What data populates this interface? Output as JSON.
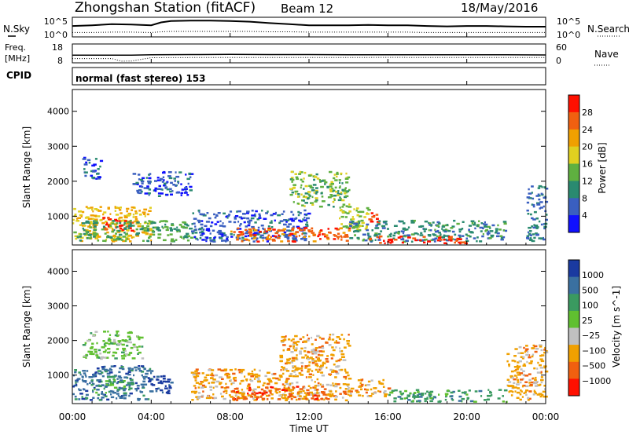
{
  "header": {
    "station": "Zhongshan Station (fitACF)",
    "beam": "Beam 12",
    "date": "18/May/2016"
  },
  "chart_data": [
    {
      "type": "line",
      "name": "noise-panel",
      "left_label": "N.Sky",
      "right_label": "N.Search",
      "left_ticks": [
        "10^5",
        "10^0"
      ],
      "right_ticks": [
        "10^5",
        "10^0"
      ],
      "ylim": [
        0,
        5
      ],
      "scale": "log10",
      "x_hours": [
        0,
        1,
        2,
        3,
        4,
        4.5,
        5,
        6,
        7,
        8,
        9,
        10,
        11,
        12,
        13,
        14,
        15,
        16,
        17,
        18,
        19,
        20,
        21,
        22,
        23,
        24
      ],
      "series": [
        {
          "values": [
            2.8,
            3.0,
            3.3,
            3.2,
            3.0,
            3.8,
            4.2,
            4.3,
            4.3,
            4.2,
            4.0,
            3.6,
            3.3,
            3.0,
            3.0,
            3.0,
            3.1,
            3.0,
            3.0,
            2.8,
            2.7,
            2.8,
            2.8,
            2.7,
            2.6,
            2.6
          ]
        },
        {
          "values": [
            1.0,
            1.0,
            1.1,
            1.1,
            1.0,
            1.2,
            1.3,
            1.3,
            1.3,
            1.3,
            1.3,
            1.2,
            1.2,
            1.1,
            1.1,
            1.1,
            1.1,
            1.1,
            1.1,
            1.0,
            1.0,
            1.0,
            1.0,
            1.0,
            1.0,
            1.0
          ]
        }
      ]
    },
    {
      "type": "line",
      "name": "frequency-panel",
      "left_label_1": "Freq.",
      "left_label_2": "[MHz]",
      "right_label": "Nave",
      "left_ticks": [
        "18",
        "8"
      ],
      "right_ticks": [
        "60",
        "0"
      ],
      "ylim": [
        8,
        18
      ],
      "x_hours": [
        0,
        2,
        2.5,
        3,
        4,
        6,
        8,
        10,
        12,
        14,
        16,
        18,
        20,
        22,
        24
      ],
      "series": [
        {
          "values": [
            12,
            12,
            12,
            12,
            12.2,
            12.3,
            12.4,
            12.3,
            12.3,
            12.2,
            12.2,
            12.2,
            12.2,
            12.2,
            12.1
          ]
        },
        {
          "values": [
            10,
            10,
            8.5,
            8.6,
            10.5,
            10.6,
            10.6,
            10.6,
            10.6,
            10.6,
            10.7,
            10.6,
            10.6,
            10.6,
            10.6
          ]
        }
      ]
    },
    {
      "type": "heatmap",
      "name": "cpid-panel",
      "label": "CPID",
      "text": "normal (fast stereo) 153"
    },
    {
      "type": "heatmap",
      "name": "power-panel",
      "ylabel": "Slant Range [km]",
      "yticks": [
        "1000",
        "2000",
        "3000",
        "4000"
      ],
      "ylim": [
        200,
        4600
      ],
      "colorbar_label": "Power [dB]",
      "colorbar_ticks": [
        "4",
        "8",
        "12",
        "16",
        "20",
        "24",
        "28"
      ],
      "colorbar_range": [
        0,
        32
      ],
      "colors": [
        "#1010ff",
        "#3a5fc0",
        "#2a8a70",
        "#5fb040",
        "#e0d020",
        "#f0a000",
        "#f06010",
        "#ff1000"
      ],
      "regions": [
        {
          "t": [
            0,
            4
          ],
          "r": [
            300,
            1300
          ],
          "v": 20
        },
        {
          "t": [
            1.5,
            3
          ],
          "r": [
            600,
            1000
          ],
          "v": 29
        },
        {
          "t": [
            0,
            6
          ],
          "r": [
            300,
            900
          ],
          "v": 12
        },
        {
          "t": [
            3,
            6
          ],
          "r": [
            1600,
            2300
          ],
          "v": 6
        },
        {
          "t": [
            0.5,
            1.5
          ],
          "r": [
            2100,
            2700
          ],
          "v": 6
        },
        {
          "t": [
            6,
            12
          ],
          "r": [
            300,
            1200
          ],
          "v": 6
        },
        {
          "t": [
            8,
            14
          ],
          "r": [
            300,
            700
          ],
          "v": 26
        },
        {
          "t": [
            13.5,
            15
          ],
          "r": [
            600,
            1300
          ],
          "v": 16
        },
        {
          "t": [
            15,
            15.6
          ],
          "r": [
            800,
            1200
          ],
          "v": 29
        },
        {
          "t": [
            11,
            14
          ],
          "r": [
            1300,
            2300
          ],
          "v": 14
        },
        {
          "t": [
            14,
            22
          ],
          "r": [
            300,
            900
          ],
          "v": 10
        },
        {
          "t": [
            15,
            20
          ],
          "r": [
            250,
            450
          ],
          "v": 29
        },
        {
          "t": [
            23,
            24
          ],
          "r": [
            300,
            1900
          ],
          "v": 8
        }
      ]
    },
    {
      "type": "heatmap",
      "name": "velocity-panel",
      "ylabel": "Slant Range [km]",
      "yticks": [
        "1000",
        "2000",
        "3000",
        "4000"
      ],
      "ylim": [
        200,
        4600
      ],
      "colorbar_label": "Velocity [m s^-1]",
      "colorbar_ticks": [
        "1000",
        "500",
        "100",
        "25",
        "−25",
        "−100",
        "−500",
        "−1000"
      ],
      "colors": [
        "#1a3aa0",
        "#3a70a0",
        "#3a9a60",
        "#60c030",
        "#c0c0c0",
        "#f0a000",
        "#f06010",
        "#ff1000"
      ],
      "regions": [
        {
          "t": [
            0,
            4
          ],
          "r": [
            300,
            1300
          ],
          "v": "500"
        },
        {
          "t": [
            1,
            3
          ],
          "r": [
            500,
            1000
          ],
          "v": "100"
        },
        {
          "t": [
            0.5,
            3.5
          ],
          "r": [
            1500,
            2300
          ],
          "v": "25"
        },
        {
          "t": [
            3.5,
            5
          ],
          "r": [
            500,
            1000
          ],
          "v": "1000"
        },
        {
          "t": [
            6,
            14
          ],
          "r": [
            300,
            1200
          ],
          "v": "-100"
        },
        {
          "t": [
            8,
            13
          ],
          "r": [
            300,
            700
          ],
          "v": "-500"
        },
        {
          "t": [
            10.5,
            14
          ],
          "r": [
            1200,
            2200
          ],
          "v": "-100"
        },
        {
          "t": [
            14,
            16
          ],
          "r": [
            400,
            900
          ],
          "v": "-100"
        },
        {
          "t": [
            16,
            22
          ],
          "r": [
            250,
            600
          ],
          "v": "100"
        },
        {
          "t": [
            22,
            24
          ],
          "r": [
            300,
            1900
          ],
          "v": "-100"
        }
      ]
    }
  ],
  "time_axis": {
    "xlabel": "Time UT",
    "ticks": [
      "00:00",
      "04:00",
      "08:00",
      "12:00",
      "16:00",
      "20:00",
      "00:00"
    ]
  }
}
